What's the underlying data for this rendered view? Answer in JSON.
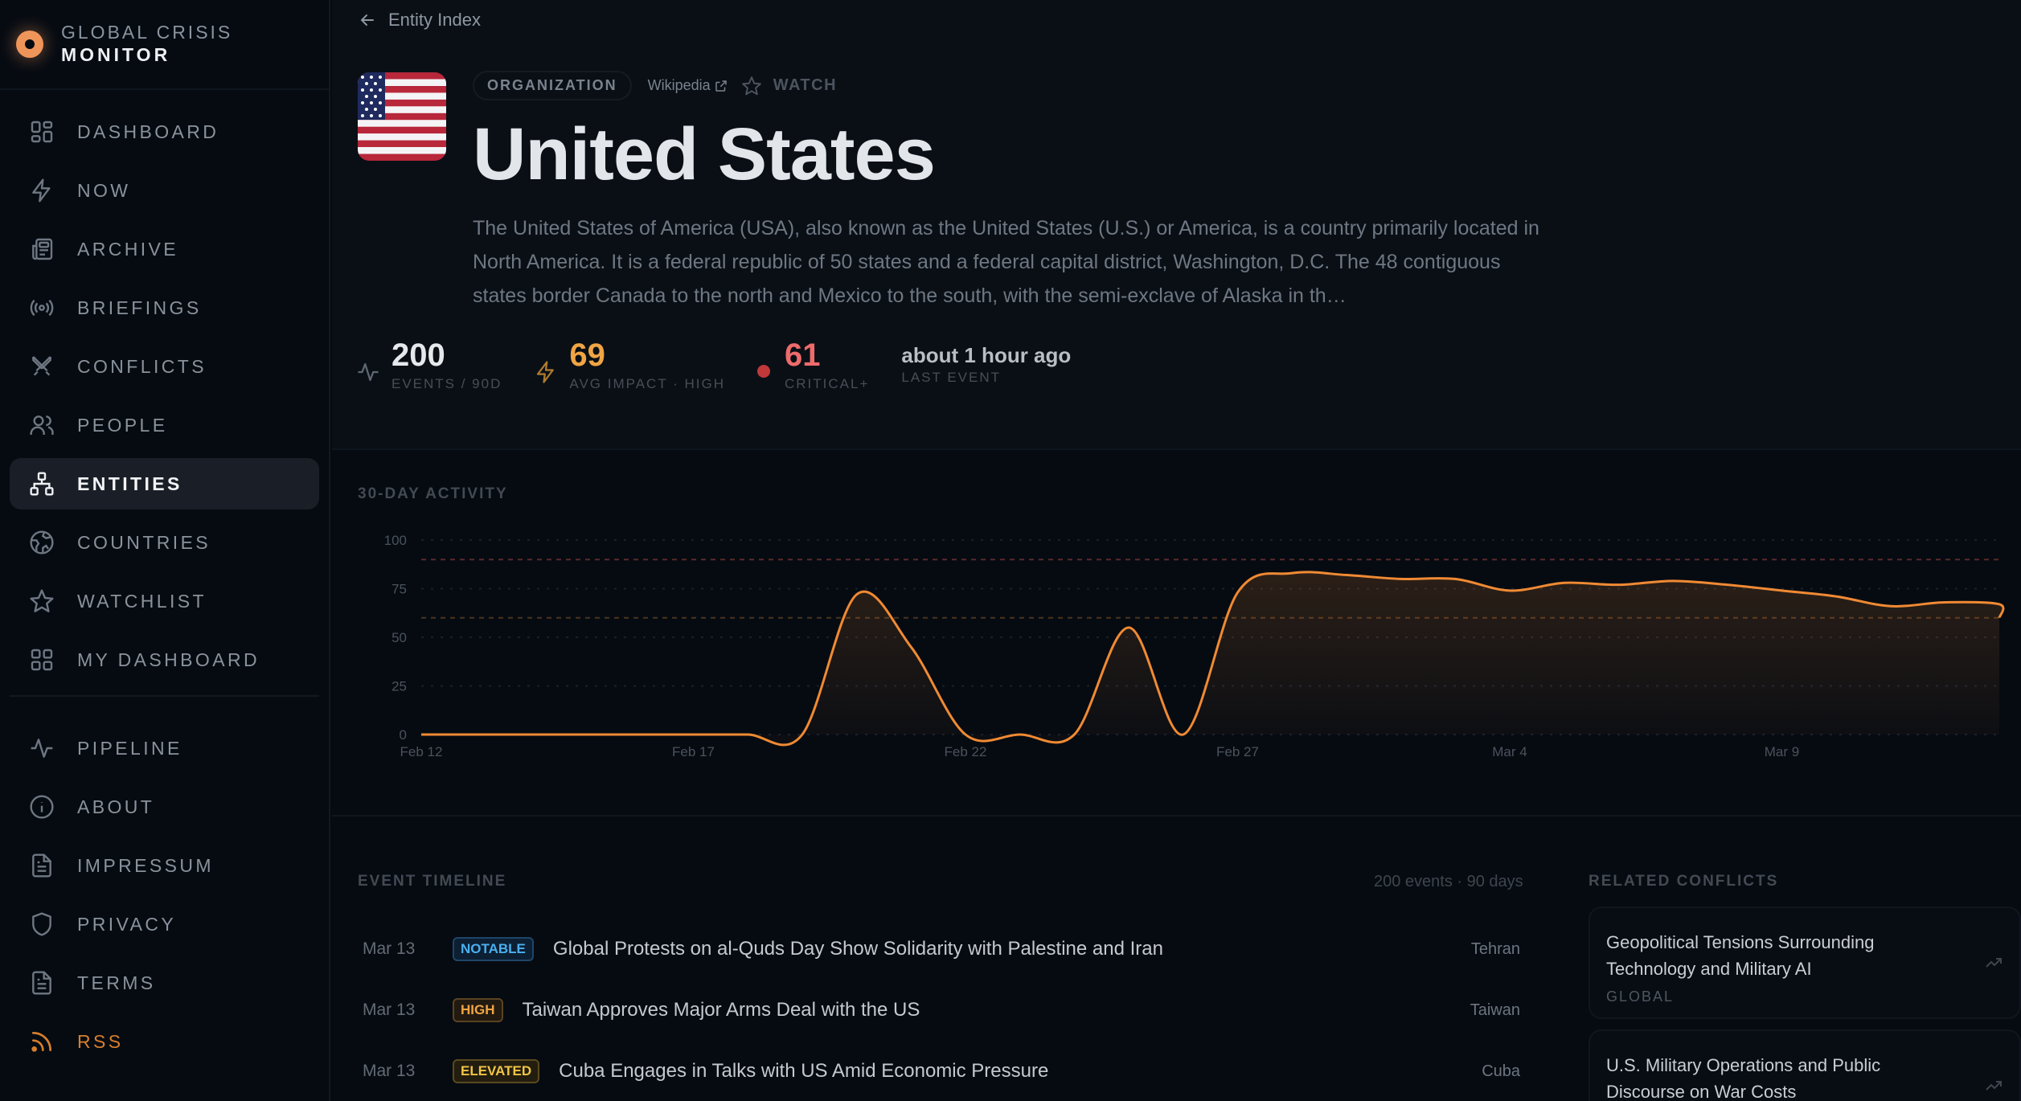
{
  "brand": {
    "line1": "GLOBAL CRISIS",
    "line2": "MONITOR",
    "accent": "#f0955a"
  },
  "sidebar": {
    "items": [
      {
        "label": "DASHBOARD",
        "icon": "dashboard-icon"
      },
      {
        "label": "NOW",
        "icon": "lightning-icon"
      },
      {
        "label": "ARCHIVE",
        "icon": "newspaper-icon"
      },
      {
        "label": "BRIEFINGS",
        "icon": "broadcast-icon"
      },
      {
        "label": "CONFLICTS",
        "icon": "swords-icon"
      },
      {
        "label": "PEOPLE",
        "icon": "users-icon"
      },
      {
        "label": "ENTITIES",
        "icon": "hierarchy-icon",
        "active": true
      },
      {
        "label": "COUNTRIES",
        "icon": "globe-icon"
      },
      {
        "label": "WATCHLIST",
        "icon": "star-icon"
      },
      {
        "label": "MY DASHBOARD",
        "icon": "grid-icon"
      }
    ],
    "secondary": [
      {
        "label": "PIPELINE",
        "icon": "activity-icon"
      },
      {
        "label": "ABOUT",
        "icon": "info-icon"
      },
      {
        "label": "IMPRESSUM",
        "icon": "document-icon"
      },
      {
        "label": "PRIVACY",
        "icon": "shield-icon"
      },
      {
        "label": "TERMS",
        "icon": "document-icon"
      },
      {
        "label": "RSS",
        "icon": "rss-icon"
      }
    ]
  },
  "breadcrumb": {
    "label": "Entity Index"
  },
  "entity": {
    "type": "ORGANIZATION",
    "wiki_label": "Wikipedia",
    "watch_label": "WATCH",
    "name": "United States",
    "description": "The United States of America (USA), also known as the United States (U.S.) or America, is a country primarily located in North America. It is a federal republic of 50 states and a federal capital district, Washington, D.C. The 48 contiguous states border Canada to the north and Mexico to the south, with the semi-exclave of Alaska in th…"
  },
  "stats": {
    "events": {
      "value": "200",
      "label": "EVENTS / 90D",
      "color": "#e6e9ec"
    },
    "impact": {
      "value": "69",
      "label": "AVG IMPACT · HIGH",
      "color": "#f0a443"
    },
    "critical": {
      "value": "61",
      "label": "CRITICAL+",
      "color": "#ee6b6b"
    },
    "last_event": {
      "value": "about 1 hour ago",
      "label": "LAST EVENT"
    }
  },
  "chart": {
    "title": "30-DAY ACTIVITY"
  },
  "chart_data": {
    "type": "area",
    "title": "30-DAY ACTIVITY",
    "xlabel": "",
    "ylabel": "",
    "ylim": [
      0,
      100
    ],
    "yticks": [
      0,
      25,
      50,
      75,
      100
    ],
    "xtick_labels": [
      "Feb 12",
      "Feb 17",
      "Feb 22",
      "Feb 27",
      "Mar 4",
      "Mar 9"
    ],
    "reference_lines": [
      {
        "value": 90,
        "color": "#5a2a2a"
      },
      {
        "value": 60,
        "color": "#4a3420"
      }
    ],
    "grid": true,
    "x": [
      "Feb 12",
      "Feb 13",
      "Feb 14",
      "Feb 15",
      "Feb 16",
      "Feb 17",
      "Feb 18",
      "Feb 19",
      "Feb 20",
      "Feb 21",
      "Feb 22",
      "Feb 23",
      "Feb 24",
      "Feb 25",
      "Feb 26",
      "Feb 27",
      "Feb 28",
      "Mar 1",
      "Mar 2",
      "Mar 3",
      "Mar 4",
      "Mar 5",
      "Mar 6",
      "Mar 7",
      "Mar 8",
      "Mar 9",
      "Mar 10",
      "Mar 11",
      "Mar 12",
      "Mar 13",
      "Mar 14"
    ],
    "values": [
      0,
      0,
      0,
      0,
      0,
      0,
      0,
      0,
      72,
      45,
      0,
      0,
      0,
      55,
      0,
      73,
      83,
      82,
      80,
      80,
      74,
      78,
      77,
      79,
      77,
      74,
      71,
      66,
      68,
      67,
      60
    ],
    "color": "#f08a33"
  },
  "timeline": {
    "title": "EVENT TIMELINE",
    "count": "200 events · 90 days",
    "events": [
      {
        "date": "Mar 13",
        "severity": "NOTABLE",
        "cls": "notable",
        "title": "Global Protests on al-Quds Day Show Solidarity with Palestine and Iran",
        "location": "Tehran"
      },
      {
        "date": "Mar 13",
        "severity": "HIGH",
        "cls": "high",
        "title": "Taiwan Approves Major Arms Deal with the US",
        "location": "Taiwan"
      },
      {
        "date": "Mar 13",
        "severity": "ELEVATED",
        "cls": "elevated",
        "title": "Cuba Engages in Talks with US Amid Economic Pressure",
        "location": "Cuba"
      }
    ]
  },
  "related": {
    "title": "RELATED CONFLICTS",
    "items": [
      {
        "name": "Geopolitical Tensions Surrounding Technology and Military AI",
        "region": "GLOBAL"
      },
      {
        "name": "U.S. Military Operations and Public Discourse on War Costs",
        "region": ""
      }
    ]
  }
}
